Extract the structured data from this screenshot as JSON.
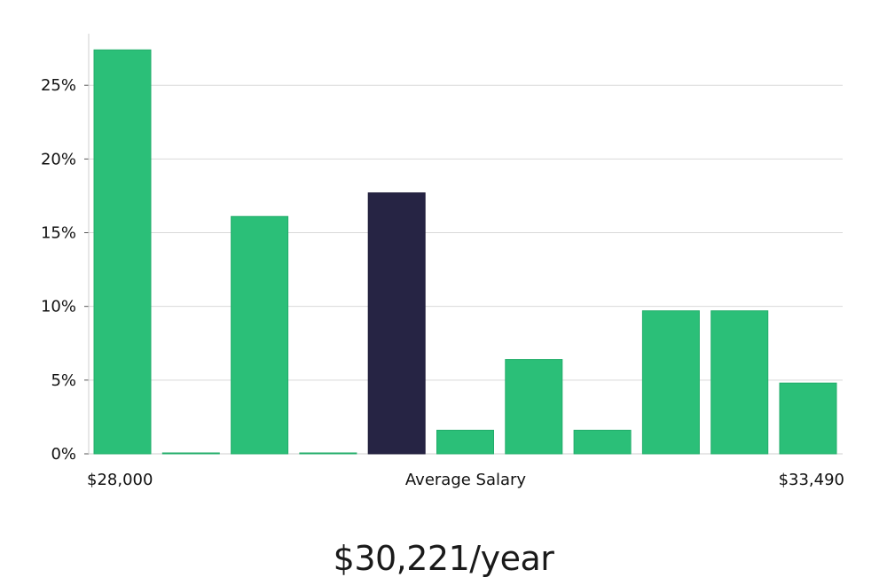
{
  "chart_data": {
    "type": "bar",
    "values": [
      27.4,
      0.05,
      16.1,
      0.05,
      17.7,
      1.6,
      6.4,
      1.6,
      9.7,
      9.7,
      4.8
    ],
    "highlight_index": 4,
    "y_ticks": [
      "0%",
      "5%",
      "10%",
      "15%",
      "20%",
      "25%"
    ],
    "y_tick_values": [
      0,
      5,
      10,
      15,
      20,
      25
    ],
    "ylim": [
      0,
      28.5
    ],
    "grid": true,
    "x_labels": {
      "min": "$28,000",
      "center": "Average Salary",
      "max": "$33,490"
    }
  },
  "colors": {
    "bar": "#2bbf78",
    "bar_stroke": "#22ad6a",
    "highlight": "#262444",
    "grid": "#d9d9d9",
    "axis": "#cfcfcf"
  },
  "headline": "$30,221/year"
}
